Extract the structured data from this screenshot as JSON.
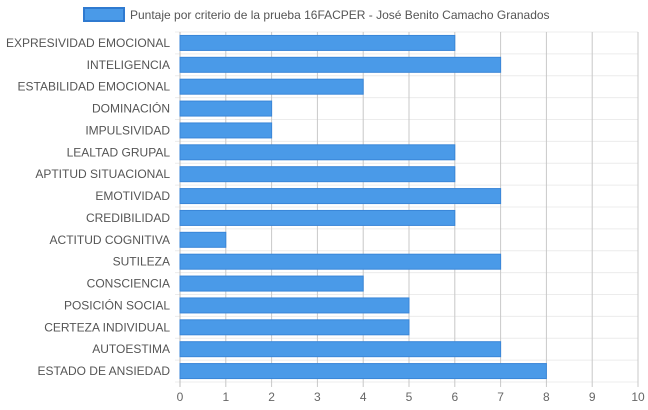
{
  "colors": {
    "bar_fill": "#4a9ae8",
    "bar_stroke": "#3a86d8",
    "legend_border": "#2f7ad0"
  },
  "chart_data": {
    "type": "bar",
    "orientation": "horizontal",
    "categories": [
      "EXPRESIVIDAD EMOCIONAL",
      "INTELIGENCIA",
      "ESTABILIDAD EMOCIONAL",
      "DOMINACIÓN",
      "IMPULSIVIDAD",
      "LEALTAD GRUPAL",
      "APTITUD SITUACIONAL",
      "EMOTIVIDAD",
      "CREDIBILIDAD",
      "ACTITUD COGNITIVA",
      "SUTILEZA",
      "CONSCIENCIA",
      "POSICIÓN SOCIAL",
      "CERTEZA INDIVIDUAL",
      "AUTOESTIMA",
      "ESTADO DE ANSIEDAD"
    ],
    "series": [
      {
        "name": "Puntaje por criterio de la prueba 16FACPER - José Benito Camacho Granados",
        "values": [
          6,
          7,
          4,
          2,
          2,
          6,
          6,
          7,
          6,
          1,
          7,
          4,
          5,
          5,
          7,
          8
        ]
      }
    ],
    "xlim": [
      0,
      10
    ],
    "x_ticks": [
      "0",
      "1",
      "2",
      "3",
      "4",
      "5",
      "6",
      "7",
      "8",
      "9",
      "10"
    ],
    "grid": true,
    "legend_position": "top"
  }
}
